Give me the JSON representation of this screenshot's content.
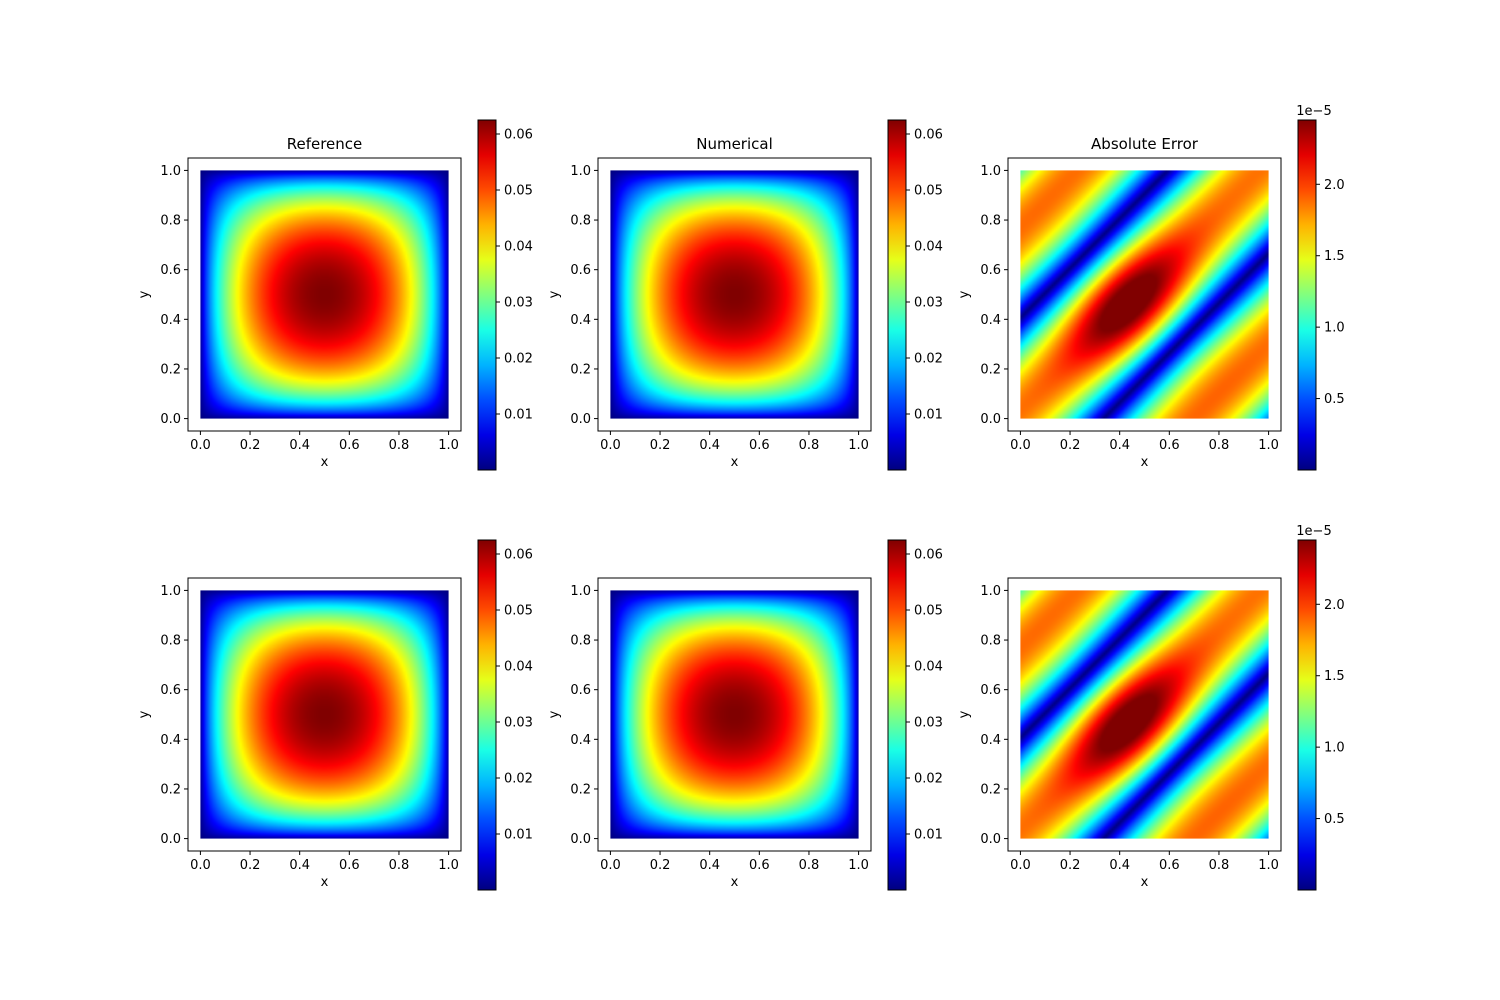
{
  "chart_data": [
    {
      "type": "heatmap",
      "title": "Reference",
      "xlabel": "x",
      "ylabel": "y",
      "xlim": [
        -0.05,
        1.05
      ],
      "ylim": [
        -0.05,
        1.05
      ],
      "x_ticks": [
        "0.0",
        "0.2",
        "0.4",
        "0.6",
        "0.8",
        "1.0"
      ],
      "y_ticks": [
        "0.0",
        "0.2",
        "0.4",
        "0.6",
        "0.8",
        "1.0"
      ],
      "field": "u(x,y) = 0.0625·(16·x(1−x)·y(1−y))^0.7",
      "peak": {
        "x": 0.5,
        "y": 0.5,
        "value": 0.0625
      },
      "colormap": "jet",
      "colorbar": {
        "range": [
          0.0,
          0.0625
        ],
        "ticks": [
          "0.01",
          "0.02",
          "0.03",
          "0.04",
          "0.05",
          "0.06"
        ],
        "offset": ""
      }
    },
    {
      "type": "heatmap",
      "title": "Numerical",
      "xlabel": "x",
      "ylabel": "y",
      "xlim": [
        -0.05,
        1.05
      ],
      "ylim": [
        -0.05,
        1.05
      ],
      "x_ticks": [
        "0.0",
        "0.2",
        "0.4",
        "0.6",
        "0.8",
        "1.0"
      ],
      "y_ticks": [
        "0.0",
        "0.2",
        "0.4",
        "0.6",
        "0.8",
        "1.0"
      ],
      "field": "u(x,y) = 0.0625·(16·x(1−x)·y(1−y))^0.7",
      "peak": {
        "x": 0.5,
        "y": 0.5,
        "value": 0.0625
      },
      "colormap": "jet",
      "colorbar": {
        "range": [
          0.0,
          0.0625
        ],
        "ticks": [
          "0.01",
          "0.02",
          "0.03",
          "0.04",
          "0.05",
          "0.06"
        ],
        "offset": ""
      }
    },
    {
      "type": "heatmap",
      "title": "Absolute Error",
      "xlabel": "x",
      "ylabel": "y",
      "xlim": [
        -0.05,
        1.05
      ],
      "ylim": [
        -0.05,
        1.05
      ],
      "x_ticks": [
        "0.0",
        "0.2",
        "0.4",
        "0.6",
        "0.8",
        "1.0"
      ],
      "y_ticks": [
        "0.0",
        "0.2",
        "0.4",
        "0.6",
        "0.8",
        "1.0"
      ],
      "field": "|error| ≈ 2.45e-5 · |sin(π(y−x) − π/2)| (diagonal band, peak near (0.45,0.45))",
      "peak": {
        "x": 0.45,
        "y": 0.45,
        "value": 2.45e-05
      },
      "colormap": "jet",
      "colorbar": {
        "range": [
          0.0,
          2.45
        ],
        "ticks": [
          "0.5",
          "1.0",
          "1.5",
          "2.0"
        ],
        "offset": "1e−5"
      }
    },
    {
      "type": "heatmap",
      "title": "",
      "xlabel": "x",
      "ylabel": "y",
      "xlim": [
        -0.05,
        1.05
      ],
      "ylim": [
        -0.05,
        1.05
      ],
      "x_ticks": [
        "0.0",
        "0.2",
        "0.4",
        "0.6",
        "0.8",
        "1.0"
      ],
      "y_ticks": [
        "0.0",
        "0.2",
        "0.4",
        "0.6",
        "0.8",
        "1.0"
      ],
      "field": "u(x,y) = 0.0625·(16·x(1−x)·y(1−y))^0.7",
      "peak": {
        "x": 0.5,
        "y": 0.5,
        "value": 0.0625
      },
      "colormap": "jet",
      "colorbar": {
        "range": [
          0.0,
          0.0625
        ],
        "ticks": [
          "0.01",
          "0.02",
          "0.03",
          "0.04",
          "0.05",
          "0.06"
        ],
        "offset": ""
      }
    },
    {
      "type": "heatmap",
      "title": "",
      "xlabel": "x",
      "ylabel": "y",
      "xlim": [
        -0.05,
        1.05
      ],
      "ylim": [
        -0.05,
        1.05
      ],
      "x_ticks": [
        "0.0",
        "0.2",
        "0.4",
        "0.6",
        "0.8",
        "1.0"
      ],
      "y_ticks": [
        "0.0",
        "0.2",
        "0.4",
        "0.6",
        "0.8",
        "1.0"
      ],
      "field": "u(x,y) = 0.0625·(16·x(1−x)·y(1−y))^0.7",
      "peak": {
        "x": 0.5,
        "y": 0.5,
        "value": 0.0625
      },
      "colormap": "jet",
      "colorbar": {
        "range": [
          0.0,
          0.0625
        ],
        "ticks": [
          "0.01",
          "0.02",
          "0.03",
          "0.04",
          "0.05",
          "0.06"
        ],
        "offset": ""
      }
    },
    {
      "type": "heatmap",
      "title": "",
      "xlabel": "x",
      "ylabel": "y",
      "xlim": [
        -0.05,
        1.05
      ],
      "ylim": [
        -0.05,
        1.05
      ],
      "x_ticks": [
        "0.0",
        "0.2",
        "0.4",
        "0.6",
        "0.8",
        "1.0"
      ],
      "y_ticks": [
        "0.0",
        "0.2",
        "0.4",
        "0.6",
        "0.8",
        "1.0"
      ],
      "field": "|error| ≈ 2.45e-5 · |sin(π(y−x) − π/2)| (diagonal band, peak near (0.45,0.45))",
      "peak": {
        "x": 0.45,
        "y": 0.45,
        "value": 2.45e-05
      },
      "colormap": "jet",
      "colorbar": {
        "range": [
          0.0,
          2.45
        ],
        "ticks": [
          "0.5",
          "1.0",
          "1.5",
          "2.0"
        ],
        "offset": "1e−5"
      }
    }
  ]
}
